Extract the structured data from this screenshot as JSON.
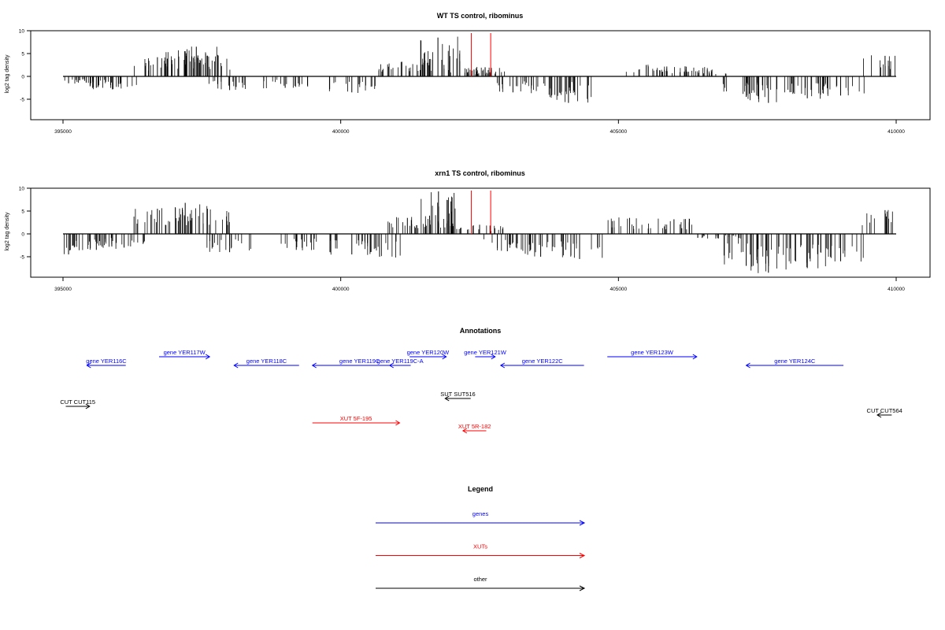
{
  "chart_data": [
    {
      "type": "bar",
      "title": "WT TS control, ribominus",
      "ylabel": "log2 tag density",
      "xlim": [
        395000,
        410000
      ],
      "ylim": [
        -9,
        10
      ],
      "xticks": [
        "395000",
        "400000",
        "405000",
        "410000"
      ],
      "yticks": [
        "10",
        "5",
        "0",
        "-5"
      ],
      "marker_positions": [
        402350,
        402700
      ],
      "series": [
        {
          "values": [
            [
              395100,
              -1.5
            ],
            [
              395600,
              -2.5
            ],
            [
              395900,
              -2.8
            ],
            [
              396700,
              4.2
            ],
            [
              397200,
              5.5
            ],
            [
              397400,
              6.5
            ],
            [
              397600,
              4.5
            ],
            [
              398000,
              -3.0
            ],
            [
              399000,
              -2.5
            ],
            [
              400200,
              -3.5
            ],
            [
              401100,
              3.2
            ],
            [
              401600,
              3.8
            ],
            [
              401750,
              8.5
            ],
            [
              402400,
              1.5
            ],
            [
              402600,
              2.0
            ],
            [
              403100,
              -3.5
            ],
            [
              403800,
              -4.0
            ],
            [
              404100,
              -5.8
            ],
            [
              405500,
              2.5
            ],
            [
              406200,
              2.2
            ],
            [
              406600,
              1.5
            ],
            [
              407300,
              -4.5
            ],
            [
              407700,
              -5.8
            ],
            [
              408400,
              -4.8
            ],
            [
              409000,
              -4.2
            ],
            [
              409800,
              4.5
            ]
          ]
        }
      ]
    },
    {
      "type": "bar",
      "title": "xrn1 TS control, ribominus",
      "ylabel": "log2 tag density",
      "xlim": [
        395000,
        410000
      ],
      "ylim": [
        -9,
        10
      ],
      "xticks": [
        "395000",
        "400000",
        "405000",
        "410000"
      ],
      "yticks": [
        "10",
        "5",
        "0",
        "-5"
      ],
      "marker_positions": [
        402350,
        402700
      ],
      "series": [
        {
          "values": [
            [
              395100,
              -4.5
            ],
            [
              395600,
              -3.5
            ],
            [
              396100,
              -3.0
            ],
            [
              396700,
              5.5
            ],
            [
              397200,
              6.8
            ],
            [
              397600,
              5.5
            ],
            [
              398000,
              -4.0
            ],
            [
              399200,
              -3.5
            ],
            [
              400200,
              -4.5
            ],
            [
              400700,
              -5.0
            ],
            [
              401200,
              3.5
            ],
            [
              401600,
              4.0
            ],
            [
              401760,
              9.3
            ],
            [
              402500,
              2.0
            ],
            [
              403000,
              -3.8
            ],
            [
              403600,
              -5.0
            ],
            [
              404300,
              -5.5
            ],
            [
              405200,
              3.5
            ],
            [
              406000,
              3.2
            ],
            [
              406800,
              -1.0
            ],
            [
              407300,
              -7.0
            ],
            [
              407700,
              -8.5
            ],
            [
              408400,
              -7.5
            ],
            [
              409000,
              -6.0
            ],
            [
              409800,
              5.2
            ]
          ]
        }
      ]
    }
  ],
  "annotations": {
    "title": "Annotations",
    "features": [
      {
        "label": "gene YER116C",
        "start": 395430,
        "end": 396130,
        "strand": "-",
        "color": "#0000ff",
        "row": 1
      },
      {
        "label": "gene YER117W",
        "start": 396730,
        "end": 397640,
        "strand": "+",
        "color": "#0000ff",
        "row": 0
      },
      {
        "label": "gene YER118C",
        "start": 398080,
        "end": 399250,
        "strand": "-",
        "color": "#0000ff",
        "row": 1
      },
      {
        "label": "gene YER119C",
        "start": 399490,
        "end": 401190,
        "strand": "-",
        "color": "#0000ff",
        "row": 1
      },
      {
        "label": "gene YER119C-A",
        "start": 400880,
        "end": 401260,
        "strand": "-",
        "color": "#0000ff",
        "row": 1
      },
      {
        "label": "gene YER120W",
        "start": 401240,
        "end": 401900,
        "strand": "+",
        "color": "#0000ff",
        "row": 0
      },
      {
        "label": "gene YER121W",
        "start": 402420,
        "end": 402780,
        "strand": "+",
        "color": "#0000ff",
        "row": 0
      },
      {
        "label": "gene YER122C",
        "start": 402880,
        "end": 404380,
        "strand": "-",
        "color": "#0000ff",
        "row": 1
      },
      {
        "label": "gene YER123W",
        "start": 404800,
        "end": 406410,
        "strand": "+",
        "color": "#0000ff",
        "row": 0
      },
      {
        "label": "gene YER124C",
        "start": 407300,
        "end": 409050,
        "strand": "-",
        "color": "#0000ff",
        "row": 1
      },
      {
        "label": "CUT CUT115",
        "start": 395050,
        "end": 395480,
        "strand": "+",
        "color": "#000000",
        "row": 3
      },
      {
        "label": "SUT SUT516",
        "start": 401880,
        "end": 402340,
        "strand": "-",
        "color": "#000000",
        "row": 2
      },
      {
        "label": "CUT CUT564",
        "start": 409660,
        "end": 409920,
        "strand": "-",
        "color": "#000000",
        "row": 4
      },
      {
        "label": "XUT 5F-195",
        "start": 399490,
        "end": 401060,
        "strand": "+",
        "color": "#ff0000",
        "row": 5
      },
      {
        "label": "XUT 5R-182",
        "start": 402200,
        "end": 402620,
        "strand": "-",
        "color": "#ff0000",
        "row": 6
      }
    ]
  },
  "legend": {
    "title": "Legend",
    "items": [
      {
        "label": "genes",
        "color": "#0000ff"
      },
      {
        "label": "XUTs",
        "color": "#ff0000"
      },
      {
        "label": "other",
        "color": "#000000"
      }
    ]
  }
}
